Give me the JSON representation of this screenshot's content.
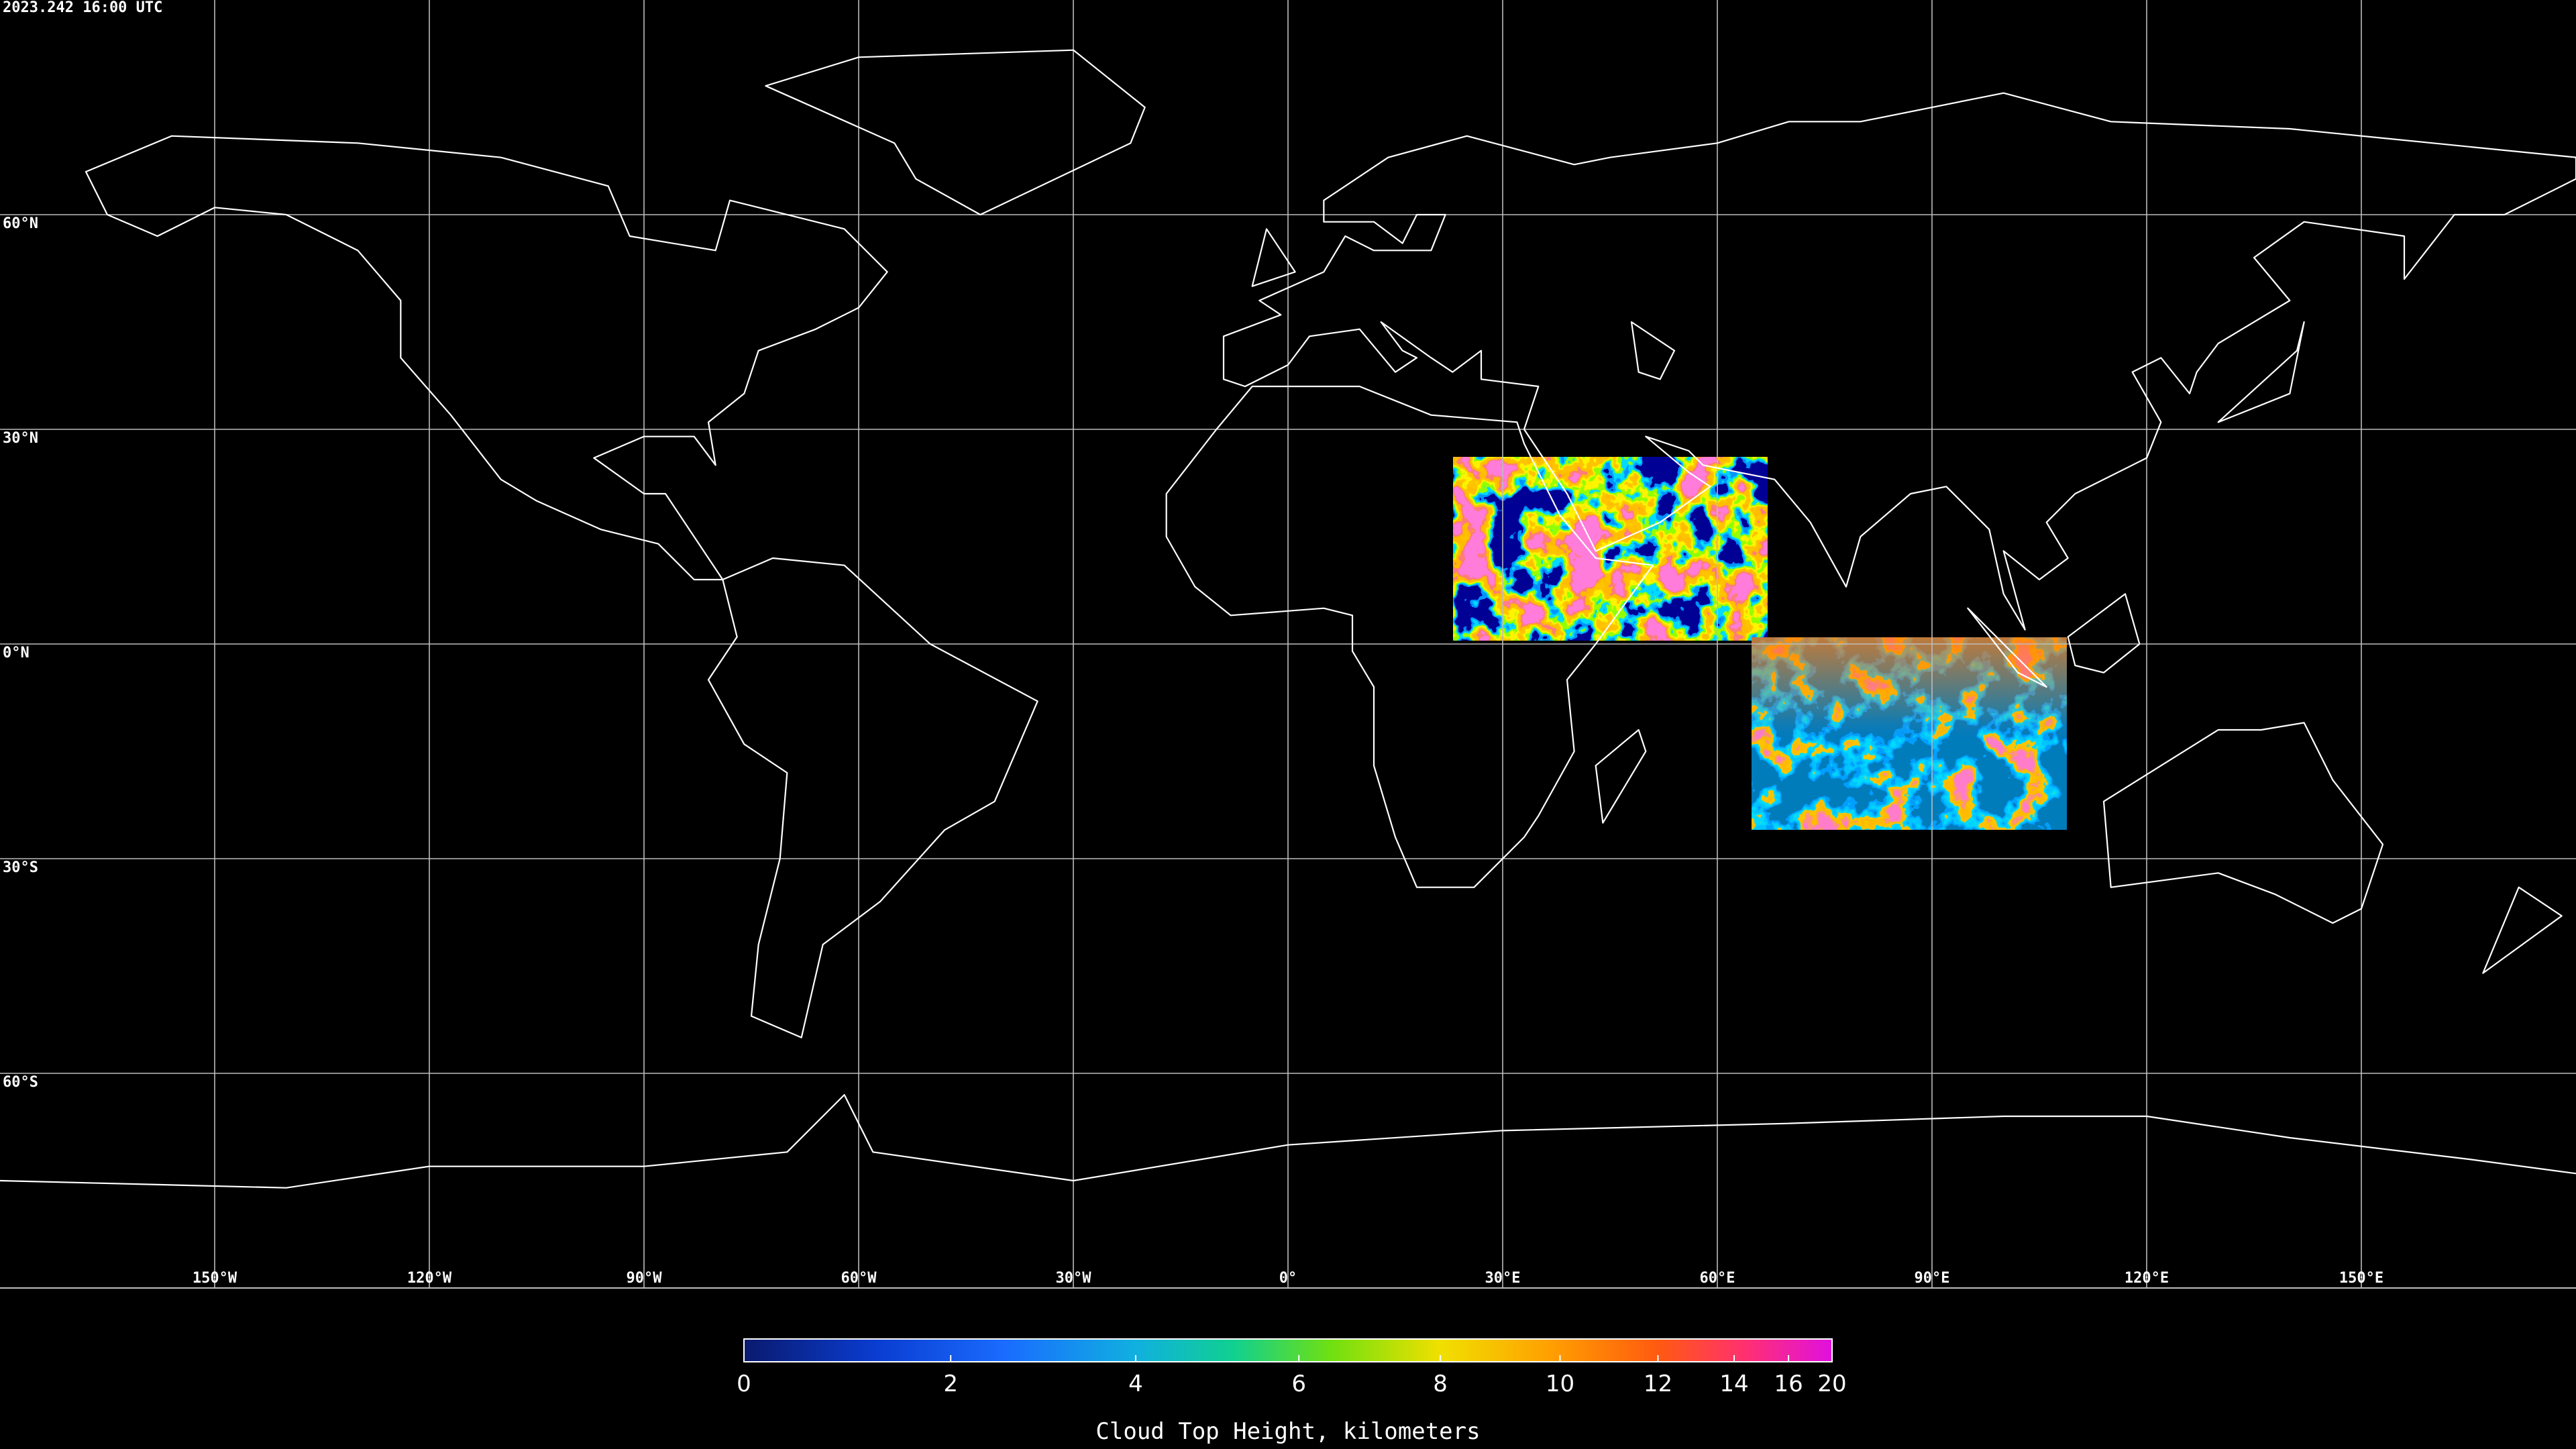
{
  "map": {
    "timestamp": "2023.242 16:00 UTC",
    "lon_range": [
      -180,
      180
    ],
    "lat_range": [
      -90,
      90
    ],
    "lat_grid": [
      {
        "value": 60,
        "label": "60°N"
      },
      {
        "value": 30,
        "label": "30°N"
      },
      {
        "value": 0,
        "label": "0°N"
      },
      {
        "value": -30,
        "label": "30°S"
      },
      {
        "value": -60,
        "label": "60°S"
      }
    ],
    "lon_grid": [
      {
        "value": -150,
        "label": "150°W"
      },
      {
        "value": -120,
        "label": "120°W"
      },
      {
        "value": -90,
        "label": "90°W"
      },
      {
        "value": -60,
        "label": "60°W"
      },
      {
        "value": -30,
        "label": "30°W"
      },
      {
        "value": 0,
        "label": "0°"
      },
      {
        "value": 30,
        "label": "30°E"
      },
      {
        "value": 60,
        "label": "60°E"
      },
      {
        "value": 90,
        "label": "90°E"
      },
      {
        "value": 120,
        "label": "120°E"
      },
      {
        "value": 150,
        "label": "150°E"
      }
    ]
  },
  "colorbar": {
    "label": "Cloud Top Height, kilometers",
    "range": [
      0,
      20
    ],
    "ticks": [
      0,
      2,
      4,
      6,
      8,
      10,
      12,
      14,
      16,
      20
    ]
  }
}
